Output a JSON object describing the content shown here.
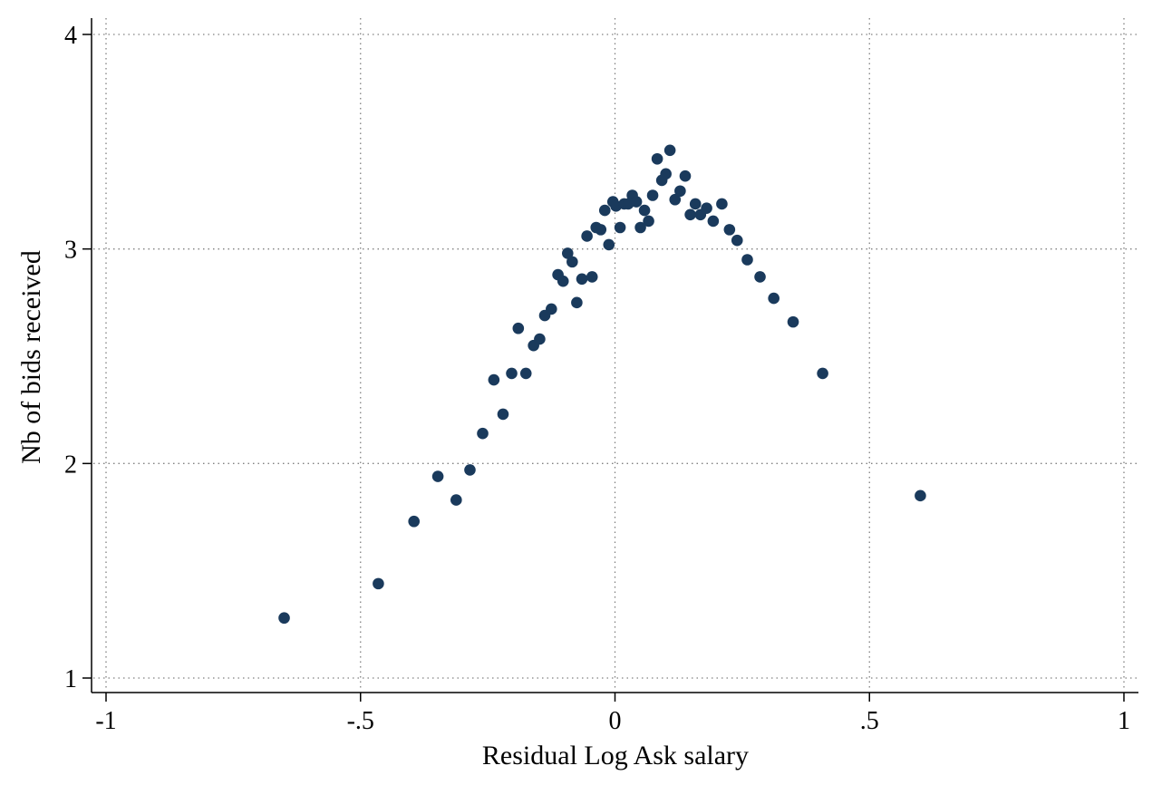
{
  "chart_data": {
    "type": "scatter",
    "title": "",
    "xlabel": "Residual Log Ask salary",
    "ylabel": "Nb of bids received",
    "xlim": [
      -1,
      1
    ],
    "ylim": [
      1,
      4
    ],
    "xticks": [
      {
        "value": -1,
        "label": "-1"
      },
      {
        "value": -0.5,
        "label": "-.5"
      },
      {
        "value": 0,
        "label": "0"
      },
      {
        "value": 0.5,
        "label": ".5"
      },
      {
        "value": 1,
        "label": "1"
      }
    ],
    "yticks": [
      {
        "value": 1,
        "label": "1"
      },
      {
        "value": 2,
        "label": "2"
      },
      {
        "value": 3,
        "label": "3"
      },
      {
        "value": 4,
        "label": "4"
      }
    ],
    "grid": true,
    "legend": "none",
    "marker_color": "#1a3a5c",
    "points": [
      {
        "x": -0.65,
        "y": 1.28
      },
      {
        "x": -0.465,
        "y": 1.44
      },
      {
        "x": -0.395,
        "y": 1.73
      },
      {
        "x": -0.348,
        "y": 1.94
      },
      {
        "x": -0.312,
        "y": 1.83
      },
      {
        "x": -0.285,
        "y": 1.97
      },
      {
        "x": -0.26,
        "y": 2.14
      },
      {
        "x": -0.238,
        "y": 2.39
      },
      {
        "x": -0.22,
        "y": 2.23
      },
      {
        "x": -0.203,
        "y": 2.42
      },
      {
        "x": -0.19,
        "y": 2.63
      },
      {
        "x": -0.175,
        "y": 2.42
      },
      {
        "x": -0.16,
        "y": 2.55
      },
      {
        "x": -0.148,
        "y": 2.58
      },
      {
        "x": -0.138,
        "y": 2.69
      },
      {
        "x": -0.125,
        "y": 2.72
      },
      {
        "x": -0.112,
        "y": 2.88
      },
      {
        "x": -0.102,
        "y": 2.85
      },
      {
        "x": -0.093,
        "y": 2.98
      },
      {
        "x": -0.084,
        "y": 2.94
      },
      {
        "x": -0.075,
        "y": 2.75
      },
      {
        "x": -0.065,
        "y": 2.86
      },
      {
        "x": -0.055,
        "y": 3.06
      },
      {
        "x": -0.045,
        "y": 2.87
      },
      {
        "x": -0.037,
        "y": 3.1
      },
      {
        "x": -0.028,
        "y": 3.09
      },
      {
        "x": -0.02,
        "y": 3.18
      },
      {
        "x": -0.012,
        "y": 3.02
      },
      {
        "x": -0.004,
        "y": 3.22
      },
      {
        "x": 0.002,
        "y": 3.2
      },
      {
        "x": 0.01,
        "y": 3.1
      },
      {
        "x": 0.018,
        "y": 3.21
      },
      {
        "x": 0.026,
        "y": 3.21
      },
      {
        "x": 0.034,
        "y": 3.25
      },
      {
        "x": 0.042,
        "y": 3.22
      },
      {
        "x": 0.05,
        "y": 3.1
      },
      {
        "x": 0.058,
        "y": 3.18
      },
      {
        "x": 0.066,
        "y": 3.13
      },
      {
        "x": 0.074,
        "y": 3.25
      },
      {
        "x": 0.083,
        "y": 3.42
      },
      {
        "x": 0.092,
        "y": 3.32
      },
      {
        "x": 0.1,
        "y": 3.35
      },
      {
        "x": 0.108,
        "y": 3.46
      },
      {
        "x": 0.118,
        "y": 3.23
      },
      {
        "x": 0.128,
        "y": 3.27
      },
      {
        "x": 0.138,
        "y": 3.34
      },
      {
        "x": 0.148,
        "y": 3.16
      },
      {
        "x": 0.158,
        "y": 3.21
      },
      {
        "x": 0.168,
        "y": 3.16
      },
      {
        "x": 0.18,
        "y": 3.19
      },
      {
        "x": 0.193,
        "y": 3.13
      },
      {
        "x": 0.21,
        "y": 3.21
      },
      {
        "x": 0.225,
        "y": 3.09
      },
      {
        "x": 0.24,
        "y": 3.04
      },
      {
        "x": 0.26,
        "y": 2.95
      },
      {
        "x": 0.285,
        "y": 2.87
      },
      {
        "x": 0.312,
        "y": 2.77
      },
      {
        "x": 0.35,
        "y": 2.66
      },
      {
        "x": 0.408,
        "y": 2.42
      },
      {
        "x": 0.6,
        "y": 1.85
      }
    ]
  }
}
